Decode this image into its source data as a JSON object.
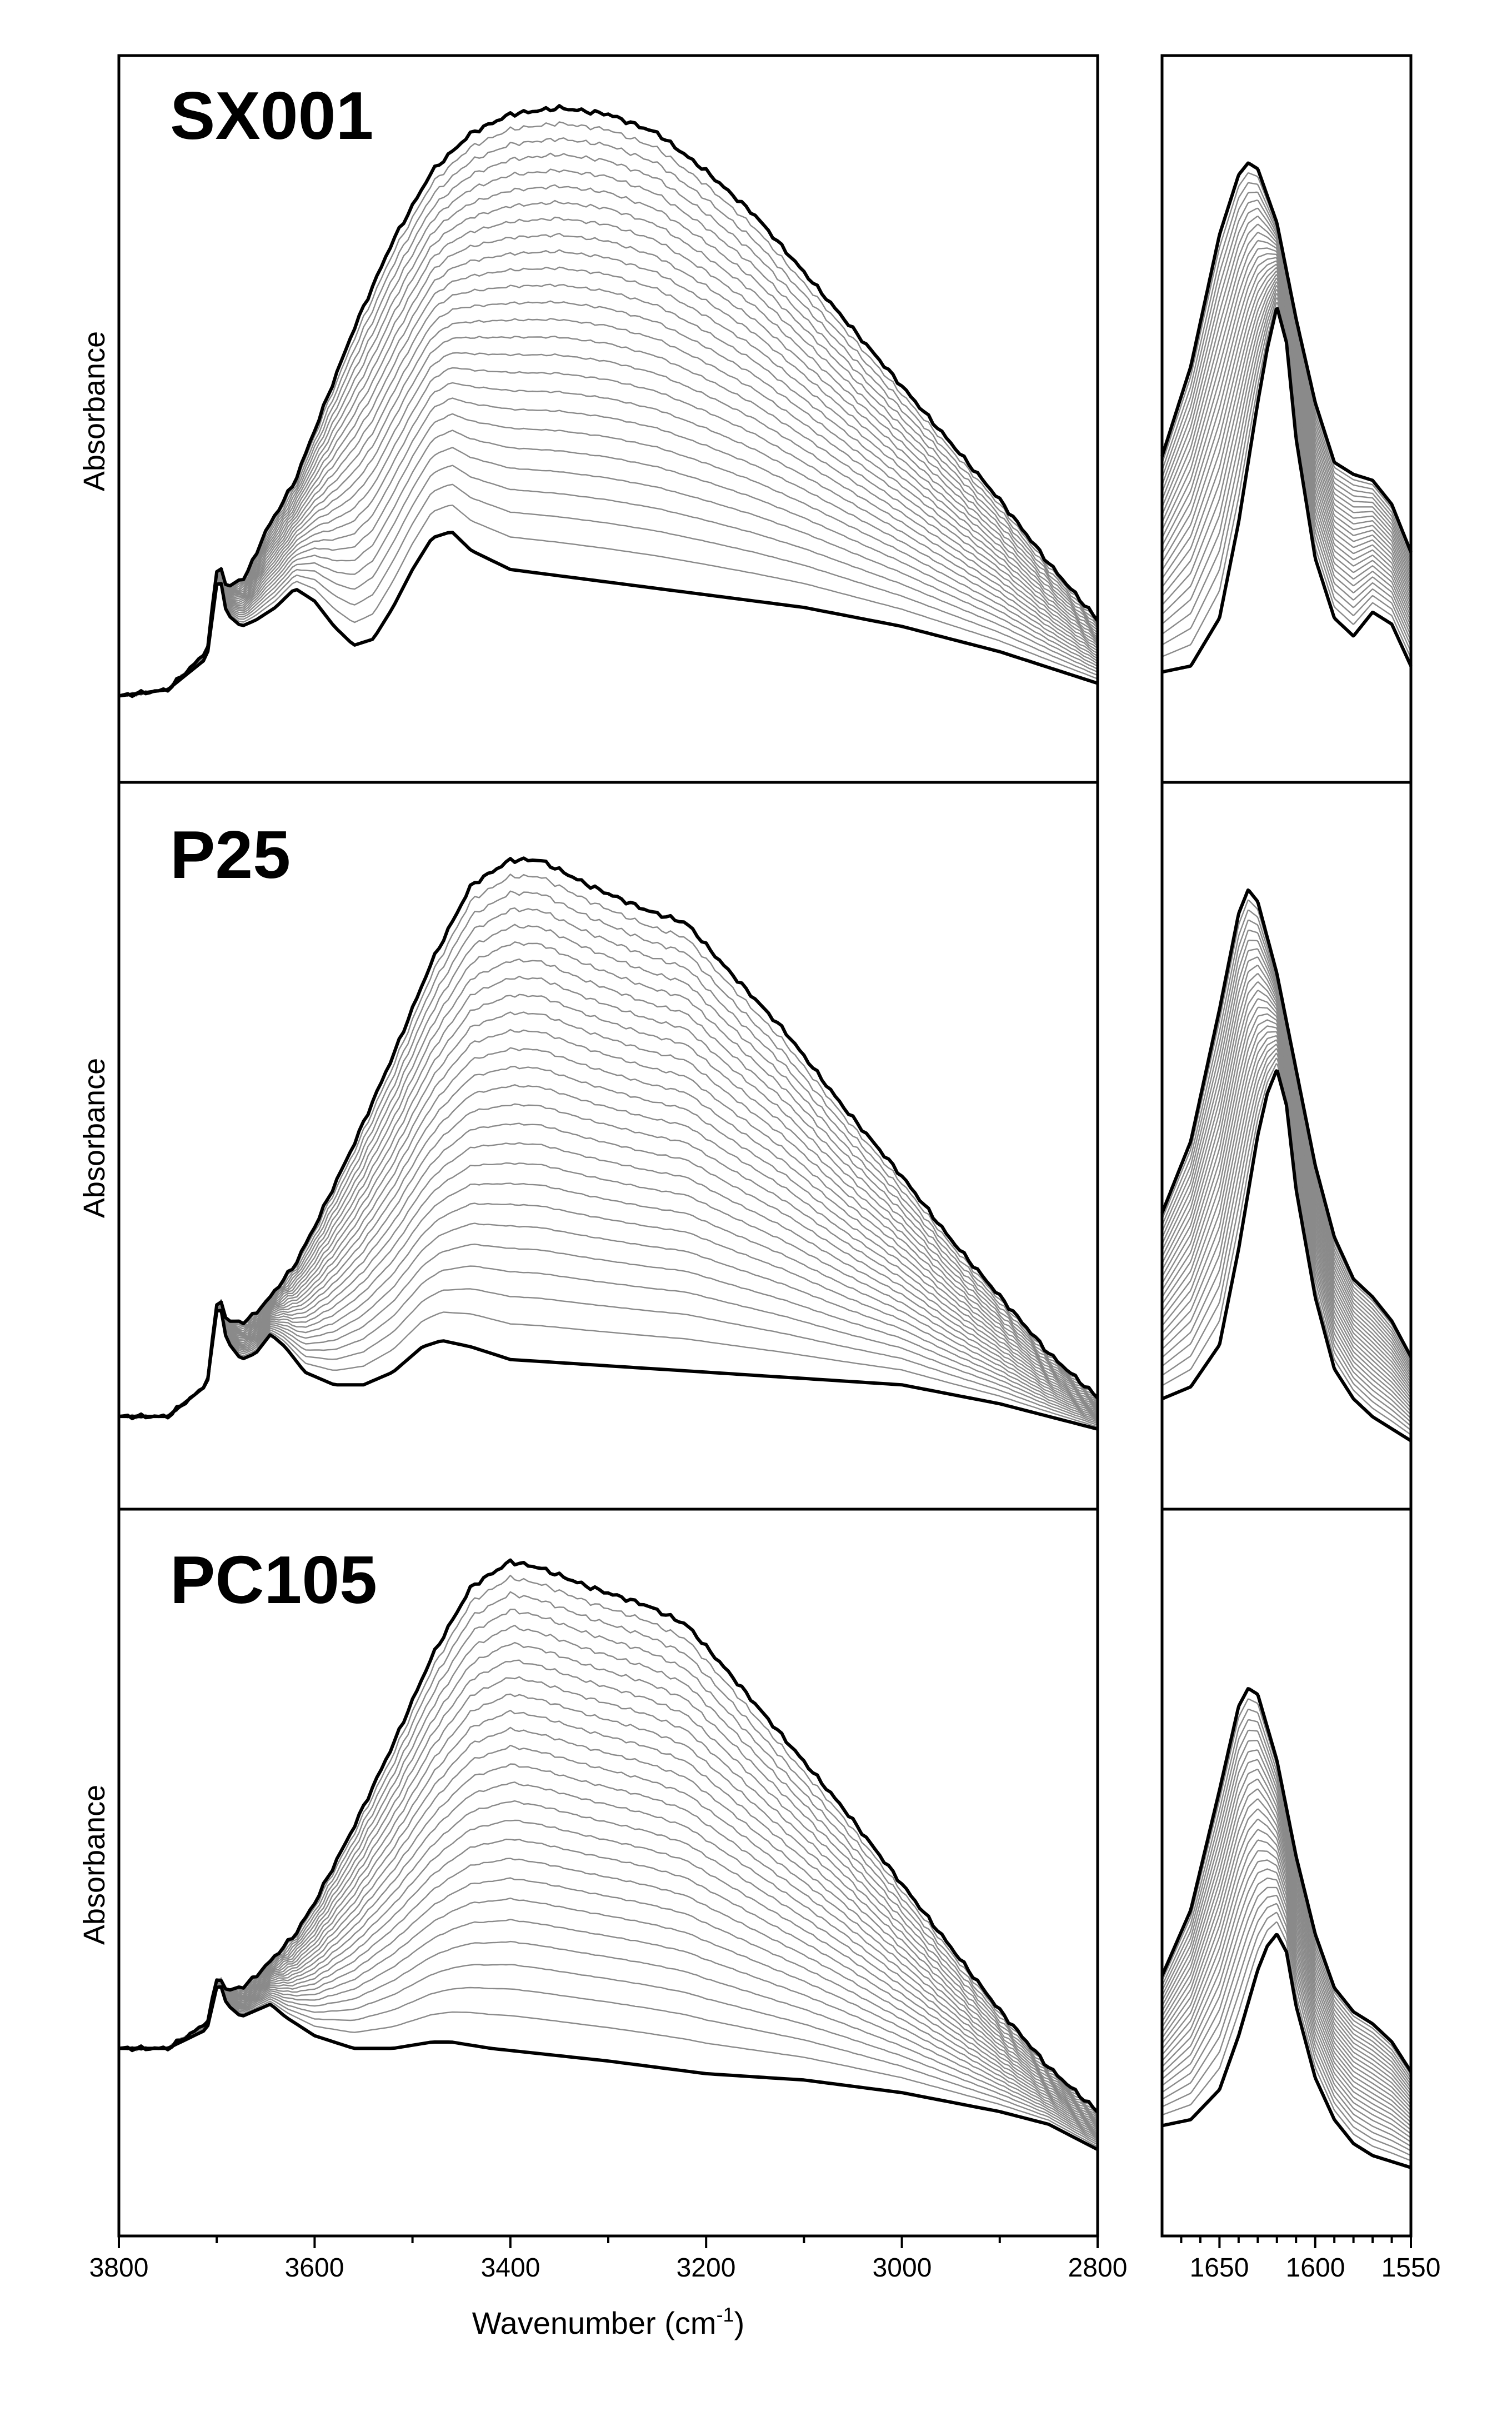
{
  "chart_data": {
    "type": "line",
    "xlabel": "Wavenumber (cm",
    "xlabel_sup": "-1",
    "xlabel_close": ")",
    "ylabel": "Absorbance",
    "x_main": {
      "range": [
        3800,
        2800
      ],
      "ticks": [
        "3800",
        "3600",
        "3400",
        "3200",
        "3000",
        "2800"
      ]
    },
    "x_inset": {
      "range": [
        1680,
        1550
      ],
      "ticks": [
        "1650",
        "1600",
        "1550"
      ]
    },
    "yticks_shown": false,
    "curves_per_panel": 26,
    "colors": {
      "outer": "#000000",
      "inner": "#8a8a8a"
    },
    "panels": [
      {
        "label": "SX001",
        "main": {
          "min_curve": [
            [
              3800,
              0.04
            ],
            [
              3750,
              0.05
            ],
            [
              3710,
              0.1
            ],
            [
              3698,
              0.24
            ],
            [
              3690,
              0.17
            ],
            [
              3675,
              0.15
            ],
            [
              3660,
              0.16
            ],
            [
              3640,
              0.18
            ],
            [
              3620,
              0.21
            ],
            [
              3600,
              0.19
            ],
            [
              3580,
              0.15
            ],
            [
              3560,
              0.12
            ],
            [
              3540,
              0.13
            ],
            [
              3520,
              0.18
            ],
            [
              3500,
              0.24
            ],
            [
              3480,
              0.29
            ],
            [
              3460,
              0.3
            ],
            [
              3440,
              0.27
            ],
            [
              3400,
              0.24
            ],
            [
              3300,
              0.22
            ],
            [
              3200,
              0.2
            ],
            [
              3100,
              0.18
            ],
            [
              3000,
              0.15
            ],
            [
              2900,
              0.11
            ],
            [
              2800,
              0.06
            ]
          ],
          "max_curve": [
            [
              3800,
              0.04
            ],
            [
              3750,
              0.05
            ],
            [
              3710,
              0.11
            ],
            [
              3698,
              0.26
            ],
            [
              3690,
              0.21
            ],
            [
              3670,
              0.23
            ],
            [
              3650,
              0.3
            ],
            [
              3620,
              0.38
            ],
            [
              3600,
              0.46
            ],
            [
              3560,
              0.62
            ],
            [
              3520,
              0.76
            ],
            [
              3480,
              0.87
            ],
            [
              3440,
              0.93
            ],
            [
              3400,
              0.96
            ],
            [
              3350,
              0.97
            ],
            [
              3300,
              0.96
            ],
            [
              3250,
              0.93
            ],
            [
              3200,
              0.87
            ],
            [
              3150,
              0.8
            ],
            [
              3100,
              0.71
            ],
            [
              3050,
              0.62
            ],
            [
              3000,
              0.53
            ],
            [
              2950,
              0.44
            ],
            [
              2900,
              0.35
            ],
            [
              2850,
              0.25
            ],
            [
              2800,
              0.16
            ]
          ]
        },
        "inset": {
          "min_curve": [
            [
              1680,
              0.11
            ],
            [
              1665,
              0.12
            ],
            [
              1650,
              0.2
            ],
            [
              1640,
              0.36
            ],
            [
              1630,
              0.56
            ],
            [
              1625,
              0.65
            ],
            [
              1620,
              0.72
            ],
            [
              1615,
              0.66
            ],
            [
              1610,
              0.5
            ],
            [
              1600,
              0.3
            ],
            [
              1590,
              0.2
            ],
            [
              1580,
              0.17
            ],
            [
              1570,
              0.21
            ],
            [
              1560,
              0.19
            ],
            [
              1550,
              0.12
            ]
          ],
          "max_curve": [
            [
              1680,
              0.47
            ],
            [
              1665,
              0.62
            ],
            [
              1650,
              0.84
            ],
            [
              1640,
              0.94
            ],
            [
              1635,
              0.96
            ],
            [
              1630,
              0.95
            ],
            [
              1620,
              0.86
            ],
            [
              1610,
              0.7
            ],
            [
              1600,
              0.56
            ],
            [
              1590,
              0.46
            ],
            [
              1580,
              0.44
            ],
            [
              1570,
              0.43
            ],
            [
              1560,
              0.39
            ],
            [
              1550,
              0.31
            ]
          ]
        }
      },
      {
        "label": "P25",
        "main": {
          "min_curve": [
            [
              3800,
              0.05
            ],
            [
              3750,
              0.05
            ],
            [
              3710,
              0.1
            ],
            [
              3698,
              0.24
            ],
            [
              3690,
              0.17
            ],
            [
              3675,
              0.14
            ],
            [
              3660,
              0.15
            ],
            [
              3645,
              0.18
            ],
            [
              3630,
              0.16
            ],
            [
              3610,
              0.12
            ],
            [
              3580,
              0.1
            ],
            [
              3550,
              0.1
            ],
            [
              3520,
              0.12
            ],
            [
              3490,
              0.16
            ],
            [
              3470,
              0.17
            ],
            [
              3440,
              0.16
            ],
            [
              3400,
              0.14
            ],
            [
              3300,
              0.13
            ],
            [
              3200,
              0.12
            ],
            [
              3100,
              0.11
            ],
            [
              3000,
              0.1
            ],
            [
              2900,
              0.07
            ],
            [
              2800,
              0.03
            ]
          ],
          "max_curve": [
            [
              3800,
              0.05
            ],
            [
              3750,
              0.05
            ],
            [
              3710,
              0.1
            ],
            [
              3698,
              0.25
            ],
            [
              3690,
              0.2
            ],
            [
              3670,
              0.2
            ],
            [
              3650,
              0.23
            ],
            [
              3620,
              0.29
            ],
            [
              3600,
              0.35
            ],
            [
              3560,
              0.48
            ],
            [
              3520,
              0.62
            ],
            [
              3480,
              0.77
            ],
            [
              3440,
              0.89
            ],
            [
              3400,
              0.93
            ],
            [
              3370,
              0.93
            ],
            [
              3320,
              0.89
            ],
            [
              3260,
              0.85
            ],
            [
              3220,
              0.83
            ],
            [
              3180,
              0.76
            ],
            [
              3120,
              0.66
            ],
            [
              3060,
              0.54
            ],
            [
              3000,
              0.43
            ],
            [
              2950,
              0.33
            ],
            [
              2900,
              0.24
            ],
            [
              2850,
              0.15
            ],
            [
              2800,
              0.08
            ]
          ]
        },
        "inset": {
          "min_curve": [
            [
              1680,
              0.11
            ],
            [
              1665,
              0.13
            ],
            [
              1650,
              0.2
            ],
            [
              1640,
              0.36
            ],
            [
              1630,
              0.55
            ],
            [
              1625,
              0.62
            ],
            [
              1620,
              0.66
            ],
            [
              1615,
              0.6
            ],
            [
              1610,
              0.46
            ],
            [
              1600,
              0.28
            ],
            [
              1590,
              0.16
            ],
            [
              1580,
              0.11
            ],
            [
              1570,
              0.08
            ],
            [
              1560,
              0.06
            ],
            [
              1550,
              0.04
            ]
          ],
          "max_curve": [
            [
              1680,
              0.42
            ],
            [
              1665,
              0.54
            ],
            [
              1650,
              0.76
            ],
            [
              1640,
              0.92
            ],
            [
              1635,
              0.96
            ],
            [
              1630,
              0.94
            ],
            [
              1620,
              0.82
            ],
            [
              1610,
              0.66
            ],
            [
              1600,
              0.5
            ],
            [
              1590,
              0.38
            ],
            [
              1580,
              0.31
            ],
            [
              1570,
              0.28
            ],
            [
              1560,
              0.24
            ],
            [
              1550,
              0.18
            ]
          ]
        }
      },
      {
        "label": "PC105",
        "main": {
          "min_curve": [
            [
              3800,
              0.2
            ],
            [
              3750,
              0.2
            ],
            [
              3710,
              0.23
            ],
            [
              3698,
              0.31
            ],
            [
              3690,
              0.27
            ],
            [
              3675,
              0.25
            ],
            [
              3660,
              0.26
            ],
            [
              3645,
              0.27
            ],
            [
              3630,
              0.25
            ],
            [
              3600,
              0.22
            ],
            [
              3560,
              0.2
            ],
            [
              3520,
              0.2
            ],
            [
              3480,
              0.21
            ],
            [
              3460,
              0.21
            ],
            [
              3420,
              0.2
            ],
            [
              3300,
              0.18
            ],
            [
              3200,
              0.16
            ],
            [
              3100,
              0.15
            ],
            [
              3000,
              0.13
            ],
            [
              2900,
              0.1
            ],
            [
              2850,
              0.08
            ],
            [
              2800,
              0.04
            ]
          ],
          "max_curve": [
            [
              3800,
              0.2
            ],
            [
              3750,
              0.2
            ],
            [
              3710,
              0.24
            ],
            [
              3698,
              0.32
            ],
            [
              3690,
              0.29
            ],
            [
              3670,
              0.3
            ],
            [
              3650,
              0.33
            ],
            [
              3620,
              0.38
            ],
            [
              3600,
              0.43
            ],
            [
              3560,
              0.55
            ],
            [
              3520,
              0.68
            ],
            [
              3480,
              0.82
            ],
            [
              3440,
              0.93
            ],
            [
              3400,
              0.97
            ],
            [
              3370,
              0.96
            ],
            [
              3320,
              0.93
            ],
            [
              3260,
              0.9
            ],
            [
              3220,
              0.87
            ],
            [
              3180,
              0.8
            ],
            [
              3120,
              0.69
            ],
            [
              3060,
              0.58
            ],
            [
              3000,
              0.46
            ],
            [
              2950,
              0.36
            ],
            [
              2900,
              0.26
            ],
            [
              2850,
              0.17
            ],
            [
              2800,
              0.1
            ]
          ]
        },
        "inset": {
          "min_curve": [
            [
              1680,
              0.11
            ],
            [
              1665,
              0.12
            ],
            [
              1650,
              0.17
            ],
            [
              1640,
              0.26
            ],
            [
              1630,
              0.37
            ],
            [
              1625,
              0.41
            ],
            [
              1620,
              0.43
            ],
            [
              1615,
              0.4
            ],
            [
              1610,
              0.31
            ],
            [
              1600,
              0.19
            ],
            [
              1590,
              0.12
            ],
            [
              1580,
              0.08
            ],
            [
              1570,
              0.06
            ],
            [
              1560,
              0.05
            ],
            [
              1550,
              0.04
            ]
          ],
          "max_curve": [
            [
              1680,
              0.36
            ],
            [
              1665,
              0.47
            ],
            [
              1650,
              0.67
            ],
            [
              1640,
              0.81
            ],
            [
              1635,
              0.84
            ],
            [
              1630,
              0.83
            ],
            [
              1620,
              0.72
            ],
            [
              1610,
              0.56
            ],
            [
              1600,
              0.43
            ],
            [
              1590,
              0.34
            ],
            [
              1580,
              0.3
            ],
            [
              1570,
              0.28
            ],
            [
              1560,
              0.25
            ],
            [
              1550,
              0.2
            ]
          ]
        }
      }
    ]
  }
}
